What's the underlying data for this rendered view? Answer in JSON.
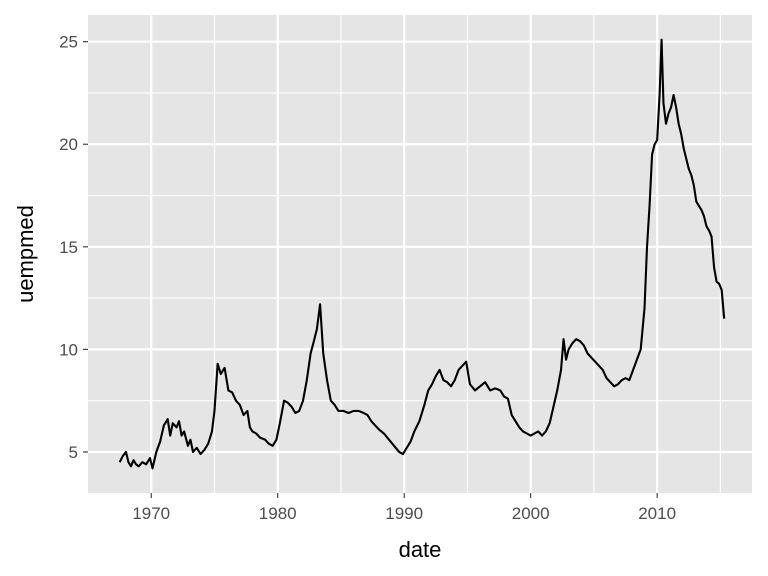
{
  "chart_data": {
    "type": "line",
    "title": "",
    "xlabel": "date",
    "ylabel": "uempmed",
    "xlim": [
      1965.0,
      2017.5
    ],
    "ylim": [
      3.0,
      26.3
    ],
    "x_ticks": [
      1970,
      1980,
      1990,
      2000,
      2010
    ],
    "y_ticks": [
      5,
      10,
      15,
      20,
      25
    ],
    "grid": true,
    "legend": "none",
    "colors": {
      "panel": "#e5e5e5",
      "grid": "#ffffff",
      "line": "#000000",
      "tick": "#4d4d4d"
    },
    "series": [
      {
        "x": [
          1967.5,
          1967.75,
          1968.0,
          1968.2,
          1968.4,
          1968.6,
          1968.8,
          1969.0,
          1969.3,
          1969.6,
          1969.9,
          1970.1,
          1970.4,
          1970.7,
          1971.0,
          1971.3,
          1971.5,
          1971.7,
          1972.0,
          1972.2,
          1972.4,
          1972.6,
          1972.9,
          1973.1,
          1973.3,
          1973.6,
          1973.9,
          1974.2,
          1974.5,
          1974.8,
          1975.0,
          1975.25,
          1975.5,
          1975.8,
          1976.1,
          1976.4,
          1976.7,
          1977.0,
          1977.3,
          1977.6,
          1977.8,
          1978.0,
          1978.3,
          1978.6,
          1979.0,
          1979.3,
          1979.6,
          1979.9,
          1980.2,
          1980.5,
          1980.8,
          1981.1,
          1981.4,
          1981.7,
          1982.0,
          1982.3,
          1982.6,
          1982.9,
          1983.1,
          1983.35,
          1983.6,
          1983.9,
          1984.2,
          1984.5,
          1984.8,
          1985.2,
          1985.6,
          1986.0,
          1986.4,
          1986.8,
          1987.1,
          1987.4,
          1987.7,
          1988.0,
          1988.4,
          1988.8,
          1989.2,
          1989.6,
          1989.9,
          1990.2,
          1990.5,
          1990.8,
          1991.2,
          1991.6,
          1991.9,
          1992.2,
          1992.5,
          1992.8,
          1993.1,
          1993.4,
          1993.7,
          1994.0,
          1994.3,
          1994.6,
          1994.9,
          1995.2,
          1995.6,
          1996.0,
          1996.4,
          1996.8,
          1997.2,
          1997.6,
          1997.9,
          1998.2,
          1998.5,
          1998.8,
          1999.1,
          1999.4,
          1999.7,
          2000.0,
          2000.3,
          2000.6,
          2000.9,
          2001.2,
          2001.5,
          2001.8,
          2002.1,
          2002.4,
          2002.6,
          2002.8,
          2003.0,
          2003.3,
          2003.6,
          2003.9,
          2004.2,
          2004.5,
          2004.8,
          2005.1,
          2005.4,
          2005.7,
          2006.0,
          2006.3,
          2006.6,
          2006.9,
          2007.2,
          2007.5,
          2007.8,
          2008.1,
          2008.4,
          2008.7,
          2009.0,
          2009.2,
          2009.4,
          2009.6,
          2009.8,
          2010.0,
          2010.2,
          2010.35,
          2010.5,
          2010.7,
          2010.9,
          2011.1,
          2011.3,
          2011.5,
          2011.7,
          2011.9,
          2012.1,
          2012.3,
          2012.5,
          2012.7,
          2012.9,
          2013.1,
          2013.3,
          2013.5,
          2013.7,
          2013.9,
          2014.1,
          2014.3,
          2014.5,
          2014.7,
          2014.9,
          2015.1,
          2015.3
        ],
        "y": [
          4.5,
          4.8,
          5.0,
          4.5,
          4.3,
          4.6,
          4.4,
          4.3,
          4.5,
          4.4,
          4.7,
          4.2,
          5.0,
          5.5,
          6.3,
          6.6,
          5.8,
          6.4,
          6.2,
          6.5,
          5.8,
          6.0,
          5.3,
          5.6,
          5.0,
          5.2,
          4.9,
          5.1,
          5.4,
          6.0,
          7.0,
          9.3,
          8.8,
          9.1,
          8.0,
          7.9,
          7.5,
          7.3,
          6.8,
          7.0,
          6.2,
          6.0,
          5.9,
          5.7,
          5.6,
          5.4,
          5.3,
          5.6,
          6.5,
          7.5,
          7.4,
          7.2,
          6.9,
          7.0,
          7.5,
          8.5,
          9.8,
          10.5,
          11.0,
          12.2,
          9.8,
          8.5,
          7.5,
          7.3,
          7.0,
          7.0,
          6.9,
          7.0,
          7.0,
          6.9,
          6.8,
          6.5,
          6.3,
          6.1,
          5.9,
          5.6,
          5.3,
          5.0,
          4.9,
          5.2,
          5.5,
          6.0,
          6.5,
          7.3,
          8.0,
          8.3,
          8.7,
          9.0,
          8.5,
          8.4,
          8.2,
          8.5,
          9.0,
          9.2,
          9.4,
          8.3,
          8.0,
          8.2,
          8.4,
          8.0,
          8.1,
          8.0,
          7.7,
          7.6,
          6.8,
          6.5,
          6.2,
          6.0,
          5.9,
          5.8,
          5.9,
          6.0,
          5.8,
          6.0,
          6.4,
          7.2,
          8.0,
          9.0,
          10.5,
          9.5,
          10.0,
          10.3,
          10.5,
          10.4,
          10.2,
          9.8,
          9.6,
          9.4,
          9.2,
          9.0,
          8.6,
          8.4,
          8.2,
          8.3,
          8.5,
          8.6,
          8.5,
          9.0,
          9.5,
          10.0,
          12.0,
          15.0,
          17.0,
          19.5,
          20.0,
          20.2,
          22.5,
          25.1,
          22.0,
          21.0,
          21.5,
          21.8,
          22.4,
          21.8,
          21.0,
          20.5,
          19.8,
          19.3,
          18.8,
          18.5,
          18.0,
          17.2,
          17.0,
          16.8,
          16.5,
          16.0,
          15.8,
          15.5,
          14.0,
          13.3,
          13.2,
          12.9,
          11.5
        ]
      }
    ]
  }
}
